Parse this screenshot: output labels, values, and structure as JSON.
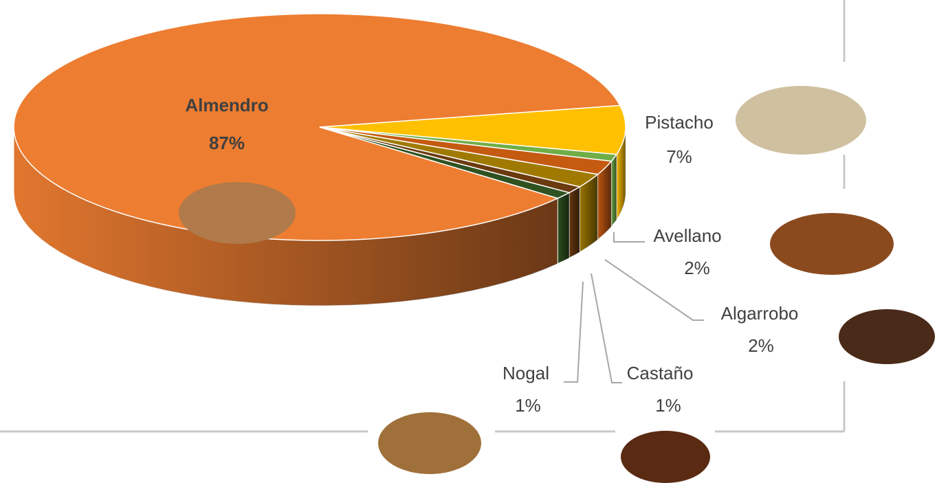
{
  "chart_data": {
    "type": "pie3d",
    "categories": [
      "Almendro",
      "Pistacho",
      null,
      "Avellano",
      "Algarrobo",
      "Castaño",
      "Nogal"
    ],
    "values": [
      87,
      7,
      1,
      2,
      2,
      1,
      1
    ],
    "value_labels": [
      "87%",
      "7%",
      null,
      "2%",
      "2%",
      "1%",
      "1%"
    ],
    "colors": [
      "#ED7D31",
      "#FFC000",
      "#70AD47",
      "#C55A11",
      "#A07A00",
      "#6B3A0E",
      "#2F5220"
    ]
  }
}
